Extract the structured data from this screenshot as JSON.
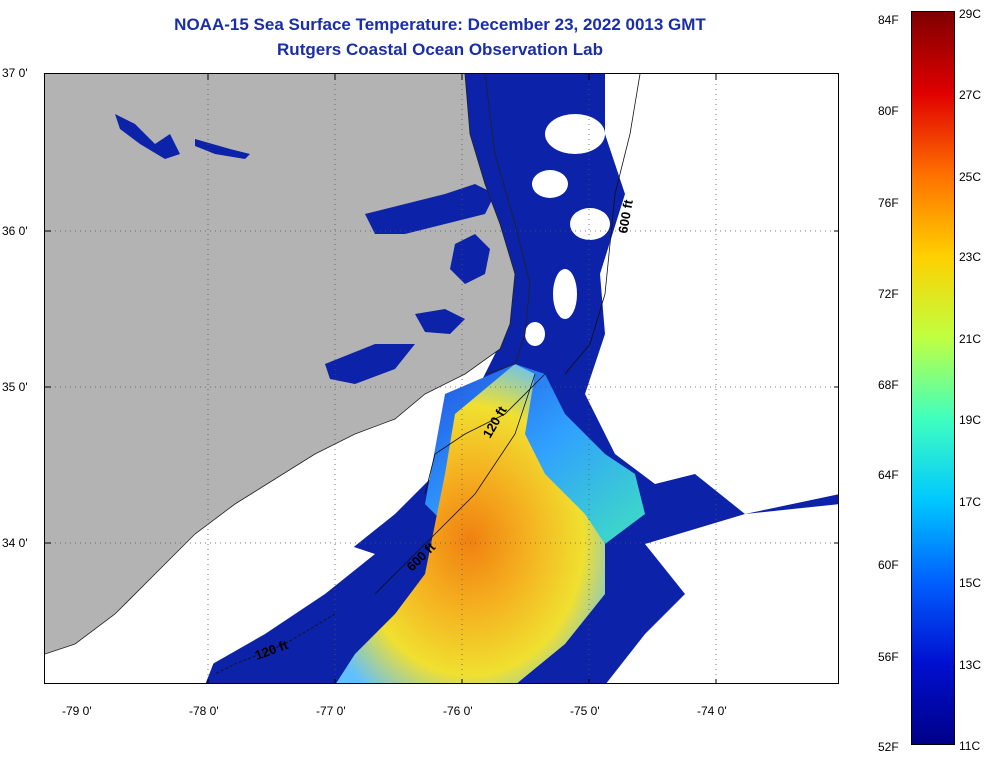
{
  "header": {
    "title": "NOAA-15 Sea Surface Temperature:  December 23, 2022 0013 GMT",
    "subtitle": "Rutgers Coastal Ocean Observation Lab"
  },
  "map": {
    "latitude_labels": [
      "37 0'",
      "36 0'",
      "35 0'",
      "34 0'"
    ],
    "longitude_labels": [
      "-79 0'",
      "-78 0'",
      "-77 0'",
      "-76 0'",
      "-75 0'",
      "-74 0'"
    ],
    "isobath_labels": [
      "600 ft",
      "120 ft",
      "600 ft",
      "120 ft"
    ],
    "colors": {
      "land": "#b3b3b3",
      "cloud": "#ffffff",
      "cold_water": "#1028b0",
      "warm_water": "#f5a020"
    }
  },
  "colorbar": {
    "fahrenheit_labels": [
      "84F",
      "80F",
      "76F",
      "72F",
      "68F",
      "64F",
      "60F",
      "56F",
      "52F"
    ],
    "celsius_labels": [
      "29C",
      "27C",
      "25C",
      "23C",
      "21C",
      "19C",
      "17C",
      "15C",
      "13C",
      "11C"
    ],
    "fahrenheit_range": [
      52,
      84
    ],
    "celsius_range": [
      11,
      29
    ],
    "gradient_stops": [
      "#000088",
      "#0010d0",
      "#0060ff",
      "#00c8ff",
      "#40ffc0",
      "#c0ff40",
      "#ffd000",
      "#ff7000",
      "#e00000",
      "#800000"
    ]
  }
}
